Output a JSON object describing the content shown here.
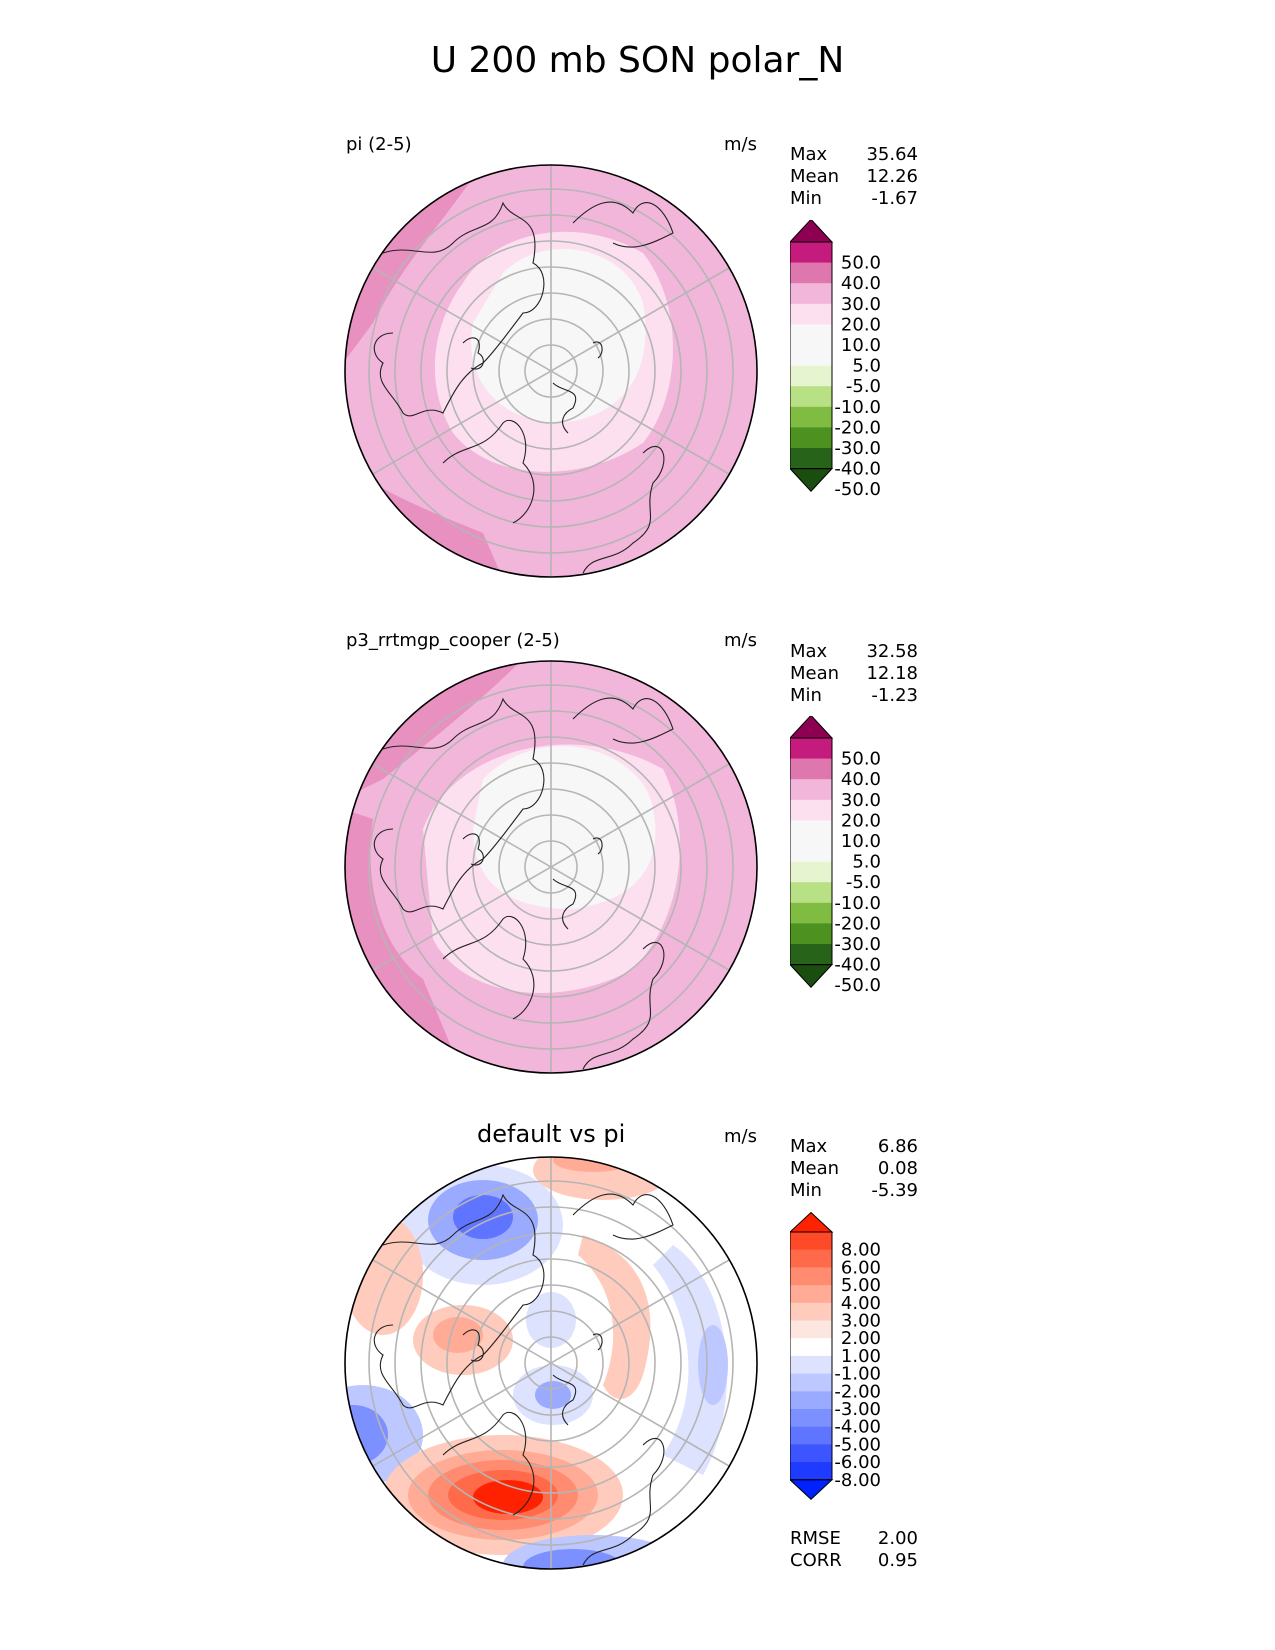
{
  "title": "U 200 mb SON polar_N",
  "panels": [
    {
      "label": "pi (2-5)",
      "units": "m/s",
      "stats": [
        {
          "name": "Max",
          "value": "35.64"
        },
        {
          "name": "Mean",
          "value": "12.26"
        },
        {
          "name": "Min",
          "value": "-1.67"
        }
      ],
      "colorbar_labels": [
        "50.0",
        "40.0",
        "30.0",
        "20.0",
        "10.0",
        "5.0",
        "-5.0",
        "-10.0",
        "-20.0",
        "-30.0",
        "-40.0",
        "-50.0"
      ]
    },
    {
      "label": "p3_rrtmgp_cooper (2-5)",
      "units": "m/s",
      "stats": [
        {
          "name": "Max",
          "value": "32.58"
        },
        {
          "name": "Mean",
          "value": "12.18"
        },
        {
          "name": "Min",
          "value": "-1.23"
        }
      ],
      "colorbar_labels": [
        "50.0",
        "40.0",
        "30.0",
        "20.0",
        "10.0",
        "5.0",
        "-5.0",
        "-10.0",
        "-20.0",
        "-30.0",
        "-40.0",
        "-50.0"
      ]
    },
    {
      "label": "default vs pi",
      "units": "m/s",
      "stats": [
        {
          "name": "Max",
          "value": "6.86"
        },
        {
          "name": "Mean",
          "value": "0.08"
        },
        {
          "name": "Min",
          "value": "-5.39"
        }
      ],
      "colorbar_labels": [
        "8.00",
        "6.00",
        "5.00",
        "4.00",
        "3.00",
        "2.00",
        "1.00",
        "-1.00",
        "-2.00",
        "-3.00",
        "-4.00",
        "-5.00",
        "-6.00",
        "-8.00"
      ],
      "metrics": [
        {
          "name": "RMSE",
          "value": "2.00"
        },
        {
          "name": "CORR",
          "value": "0.95"
        }
      ]
    }
  ],
  "colors": {
    "wind_scale": [
      "#8e0152",
      "#c51b7d",
      "#de77ae",
      "#f1b6da",
      "#fde0ef",
      "#f7f7f7",
      "#f7f7f7",
      "#e6f5d0",
      "#b8e186",
      "#7fbc41",
      "#4d9221",
      "#276419",
      "#1b4d10"
    ],
    "diff_scale": [
      "#ff2200",
      "#ff4a2a",
      "#ff6b4a",
      "#ff8c70",
      "#ffab95",
      "#ffcbbc",
      "#fde6df",
      "#ffffff",
      "#dde3ff",
      "#bcc8ff",
      "#9aabff",
      "#7d90ff",
      "#5f74ff",
      "#3d55ff",
      "#1f3bff",
      "#0022ff"
    ]
  }
}
